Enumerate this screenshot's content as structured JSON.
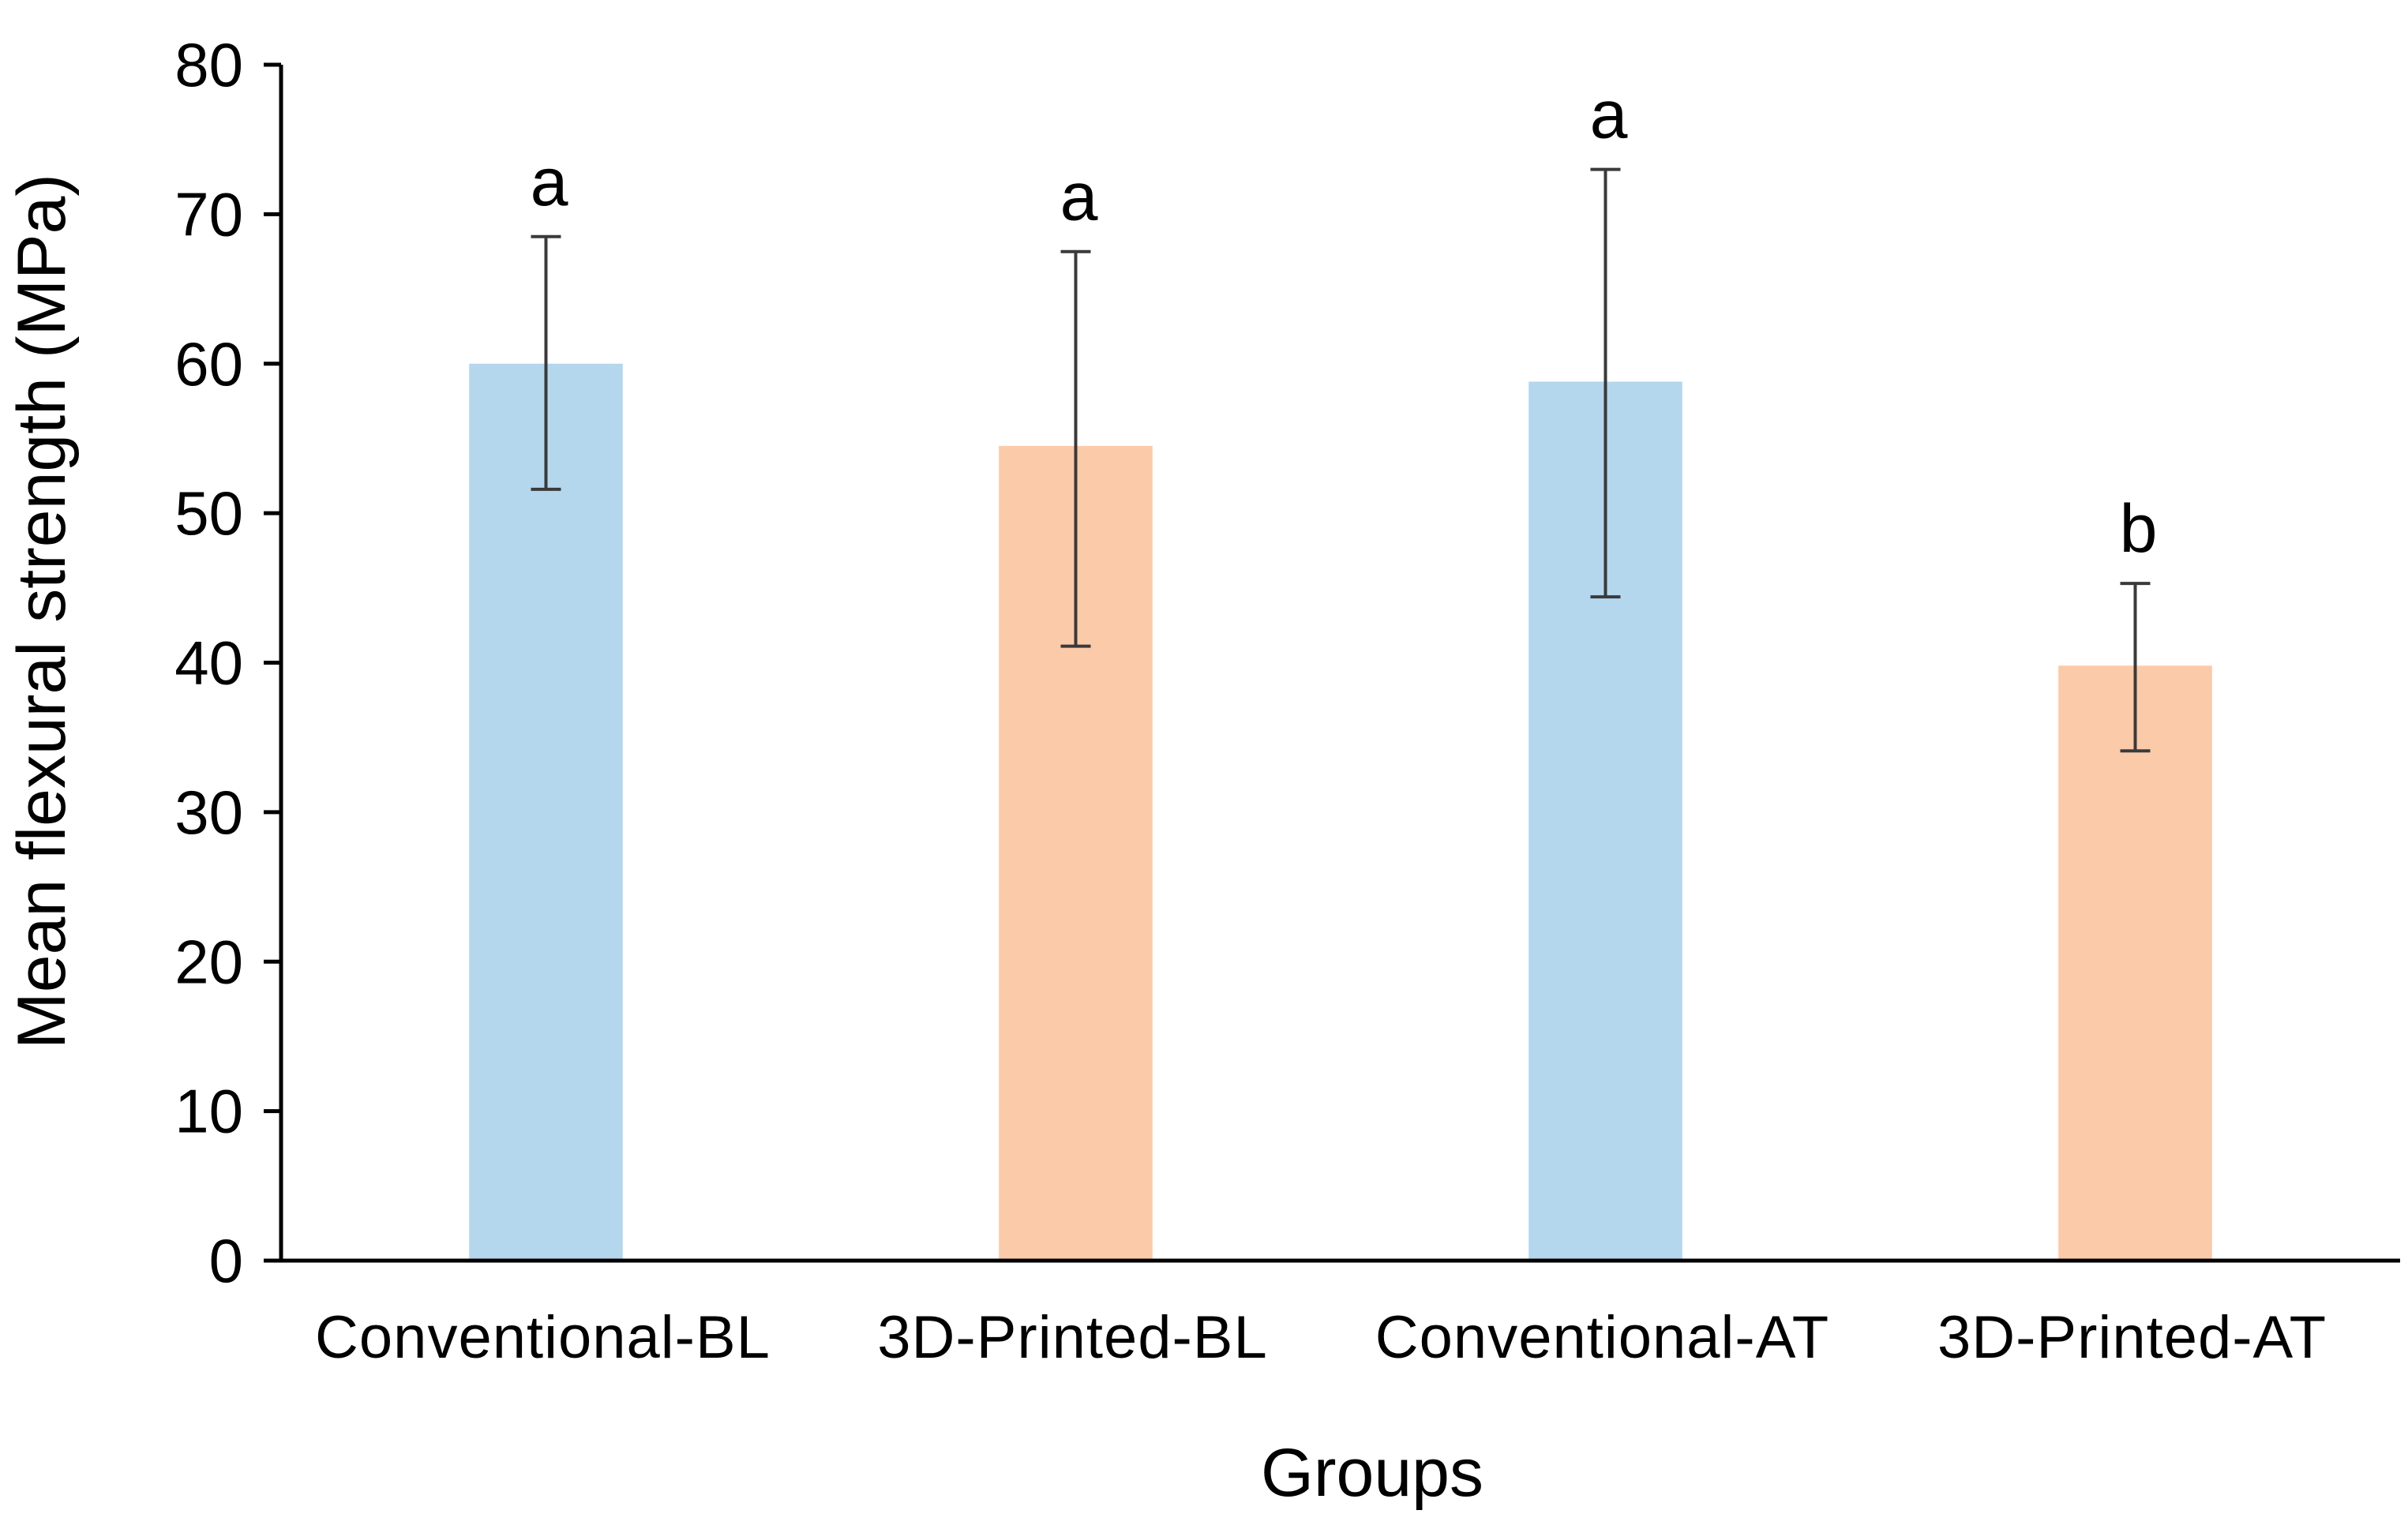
{
  "chart_data": {
    "type": "bar",
    "title": "",
    "xlabel": "Groups",
    "ylabel": "Mean flexural  strength  (MPa)",
    "ylim": [
      0,
      80
    ],
    "yticks": [
      0,
      10,
      20,
      30,
      40,
      50,
      60,
      70,
      80
    ],
    "grid": false,
    "categories": [
      "Conventional-BL",
      "3D-Printed-BL",
      "Conventional-AT",
      "3D-Printed-AT"
    ],
    "values": [
      60.0,
      54.5,
      58.8,
      39.8
    ],
    "error_upper": [
      68.5,
      67.5,
      73.0,
      45.3
    ],
    "error_lower": [
      51.6,
      41.1,
      44.4,
      34.1
    ],
    "significance_letters": [
      "a",
      "a",
      "a",
      "b"
    ],
    "bar_colors": [
      "#b4d7ee",
      "#fbcaa9",
      "#b4d7ee",
      "#fbcaa9"
    ]
  }
}
